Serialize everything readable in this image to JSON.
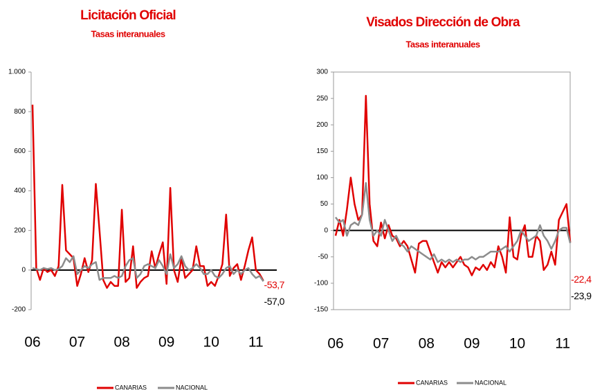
{
  "chart_data": [
    {
      "type": "line",
      "title": "Licitación Oficial",
      "subtitle": "Tasas interanuales",
      "categories": [
        "06",
        null,
        null,
        null,
        null,
        null,
        null,
        null,
        null,
        null,
        null,
        null,
        "07",
        null,
        null,
        null,
        null,
        null,
        null,
        null,
        null,
        null,
        null,
        null,
        "08",
        null,
        null,
        null,
        null,
        null,
        null,
        null,
        null,
        null,
        null,
        null,
        "09",
        null,
        null,
        null,
        null,
        null,
        null,
        null,
        null,
        null,
        null,
        null,
        "10",
        null,
        null,
        null,
        null,
        null,
        null,
        null,
        null,
        null,
        null,
        null,
        "11",
        null,
        null
      ],
      "series": [
        {
          "name": "CANARIAS",
          "color": "#e00000",
          "values": [
            835,
            10,
            -50,
            10,
            -10,
            0,
            -30,
            20,
            430,
            100,
            80,
            60,
            -80,
            -20,
            60,
            -10,
            50,
            435,
            200,
            -50,
            -90,
            -60,
            -80,
            -80,
            305,
            -60,
            -40,
            120,
            -90,
            -60,
            -40,
            -30,
            95,
            10,
            80,
            140,
            -70,
            415,
            0,
            -60,
            60,
            -40,
            -20,
            0,
            120,
            20,
            20,
            -80,
            -60,
            -80,
            -30,
            30,
            280,
            -30,
            10,
            30,
            -50,
            20,
            100,
            165,
            0,
            -20,
            -53.7
          ],
          "value_labels": [
            null,
            null,
            null,
            null,
            null,
            null,
            null,
            null,
            null,
            null,
            null,
            null,
            null,
            null,
            null,
            null,
            null,
            null,
            null,
            null,
            null,
            null,
            null,
            null,
            null,
            null,
            null,
            null,
            null,
            null,
            null,
            null,
            null,
            null,
            null,
            null,
            null,
            null,
            null,
            null,
            null,
            null,
            null,
            null,
            null,
            null,
            null,
            null,
            null,
            null,
            null,
            null,
            null,
            null,
            null,
            null,
            null,
            null,
            null,
            null,
            null,
            null,
            "-53,7"
          ]
        },
        {
          "name": "NACIONAL",
          "color": "#8c8c8c",
          "values": [
            10,
            5,
            0,
            10,
            5,
            10,
            0,
            5,
            20,
            60,
            40,
            70,
            -20,
            0,
            20,
            10,
            30,
            40,
            -50,
            -40,
            -40,
            -40,
            -30,
            -40,
            -30,
            20,
            50,
            60,
            -40,
            -20,
            20,
            30,
            20,
            10,
            50,
            20,
            -20,
            80,
            10,
            30,
            70,
            20,
            0,
            10,
            30,
            10,
            -20,
            -20,
            0,
            -30,
            -40,
            -20,
            10,
            20,
            -20,
            0,
            -20,
            0,
            10,
            -20,
            -40,
            -30,
            -57.0
          ],
          "value_labels": [
            null,
            null,
            null,
            null,
            null,
            null,
            null,
            null,
            null,
            null,
            null,
            null,
            null,
            null,
            null,
            null,
            null,
            null,
            null,
            null,
            null,
            null,
            null,
            null,
            null,
            null,
            null,
            null,
            null,
            null,
            null,
            null,
            null,
            null,
            null,
            null,
            null,
            null,
            null,
            null,
            null,
            null,
            null,
            null,
            null,
            null,
            null,
            null,
            null,
            null,
            null,
            null,
            null,
            null,
            null,
            null,
            null,
            null,
            null,
            null,
            null,
            null,
            "-57,0"
          ]
        }
      ],
      "ylim": [
        -200,
        1000
      ],
      "yticks": [
        -200,
        0,
        200,
        400,
        600,
        800,
        {
          "value": 1000,
          "label": "1.000"
        }
      ]
    },
    {
      "type": "line",
      "title": "Visados Dirección de Obra",
      "subtitle": "Tasas interanuales",
      "categories": [
        "06",
        null,
        null,
        null,
        null,
        null,
        null,
        null,
        null,
        null,
        null,
        null,
        "07",
        null,
        null,
        null,
        null,
        null,
        null,
        null,
        null,
        null,
        null,
        null,
        "08",
        null,
        null,
        null,
        null,
        null,
        null,
        null,
        null,
        null,
        null,
        null,
        "09",
        null,
        null,
        null,
        null,
        null,
        null,
        null,
        null,
        null,
        null,
        null,
        "10",
        null,
        null,
        null,
        null,
        null,
        null,
        null,
        null,
        null,
        null,
        null,
        "11",
        null,
        null
      ],
      "series": [
        {
          "name": "CANARIAS",
          "color": "#e00000",
          "values": [
            -10,
            20,
            -10,
            40,
            100,
            50,
            20,
            30,
            255,
            50,
            -20,
            -30,
            15,
            -15,
            10,
            -10,
            -15,
            -30,
            -20,
            -30,
            -55,
            -80,
            -25,
            -20,
            -20,
            -40,
            -60,
            -80,
            -60,
            -70,
            -60,
            -70,
            -60,
            -50,
            -65,
            -70,
            -85,
            -70,
            -75,
            -65,
            -75,
            -60,
            -70,
            -30,
            -50,
            -80,
            25,
            -50,
            -55,
            -10,
            10,
            -50,
            -50,
            -10,
            -20,
            -75,
            -65,
            -40,
            -65,
            20,
            35,
            50,
            -22.4
          ],
          "value_labels": [
            null,
            null,
            null,
            null,
            null,
            null,
            null,
            null,
            null,
            null,
            null,
            null,
            null,
            null,
            null,
            null,
            null,
            null,
            null,
            null,
            null,
            null,
            null,
            null,
            null,
            null,
            null,
            null,
            null,
            null,
            null,
            null,
            null,
            null,
            null,
            null,
            null,
            null,
            null,
            null,
            null,
            null,
            null,
            null,
            null,
            null,
            null,
            null,
            null,
            null,
            null,
            null,
            null,
            null,
            null,
            null,
            null,
            null,
            null,
            null,
            null,
            null,
            "-22,4"
          ]
        },
        {
          "name": "NACIONAL",
          "color": "#8c8c8c",
          "values": [
            25,
            15,
            20,
            -10,
            10,
            15,
            10,
            30,
            90,
            20,
            -10,
            0,
            -10,
            20,
            0,
            -20,
            -10,
            -25,
            -30,
            -40,
            -30,
            -35,
            -40,
            -45,
            -50,
            -55,
            -45,
            -60,
            -55,
            -60,
            -55,
            -60,
            -55,
            -60,
            -55,
            -55,
            -50,
            -55,
            -50,
            -50,
            -45,
            -40,
            -40,
            -40,
            -35,
            -30,
            -40,
            -30,
            -20,
            0,
            -10,
            -20,
            -15,
            -10,
            10,
            -10,
            -20,
            -35,
            -20,
            0,
            5,
            5,
            -23.9
          ],
          "value_labels": [
            null,
            null,
            null,
            null,
            null,
            null,
            null,
            null,
            null,
            null,
            null,
            null,
            null,
            null,
            null,
            null,
            null,
            null,
            null,
            null,
            null,
            null,
            null,
            null,
            null,
            null,
            null,
            null,
            null,
            null,
            null,
            null,
            null,
            null,
            null,
            null,
            null,
            null,
            null,
            null,
            null,
            null,
            null,
            null,
            null,
            null,
            null,
            null,
            null,
            null,
            null,
            null,
            null,
            null,
            null,
            null,
            null,
            null,
            null,
            null,
            null,
            null,
            "-23,9"
          ]
        }
      ],
      "ylim": [
        -150,
        300
      ],
      "yticks": [
        -150,
        -100,
        -50,
        0,
        50,
        100,
        150,
        200,
        250,
        300
      ]
    }
  ]
}
